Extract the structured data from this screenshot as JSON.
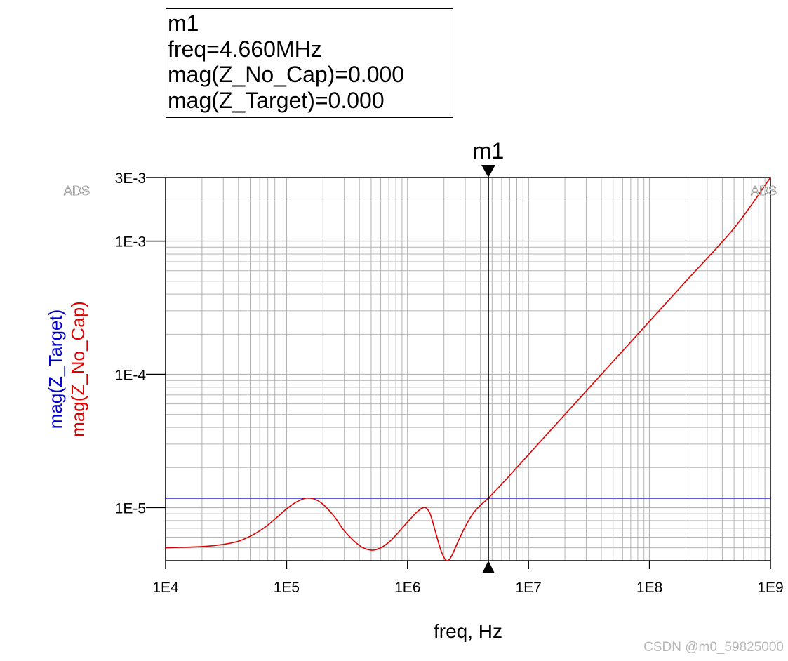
{
  "marker": {
    "name": "m1",
    "freq_line": "freq=4.660MHz",
    "line_no_cap": "mag(Z_No_Cap)=0.000",
    "line_target": "mag(Z_Target)=0.000"
  },
  "watermark_left": "ADS",
  "watermark_right": "ADS",
  "credit": "CSDN @m0_59825000",
  "colors": {
    "target": "#0000cc",
    "no_cap": "#e00000",
    "grid": "#b4b4b4"
  },
  "chart_data": {
    "type": "line",
    "xscale": "log",
    "yscale": "log",
    "xlabel": "freq, Hz",
    "ylabel_series": [
      "mag(Z_Target)",
      "mag(Z_No_Cap)"
    ],
    "xlim": [
      10000,
      1000000000
    ],
    "ylim": [
      4e-06,
      0.003
    ],
    "grid": true,
    "x_ticks": [
      {
        "value": 10000,
        "label": "1E4"
      },
      {
        "value": 100000,
        "label": "1E5"
      },
      {
        "value": 1000000,
        "label": "1E6"
      },
      {
        "value": 10000000,
        "label": "1E7"
      },
      {
        "value": 100000000,
        "label": "1E8"
      },
      {
        "value": 1000000000,
        "label": "1E9"
      }
    ],
    "y_ticks": [
      {
        "value": 1e-05,
        "label": "1E-5"
      },
      {
        "value": 0.0001,
        "label": "1E-4"
      },
      {
        "value": 0.001,
        "label": "1E-3"
      },
      {
        "value": 0.003,
        "label": "3E-3"
      }
    ],
    "marker_x": 4660000,
    "series": [
      {
        "name": "mag(Z_Target)",
        "color": "#0000cc",
        "x": [
          10000,
          1000000000
        ],
        "y": [
          1.18e-05,
          1.18e-05
        ]
      },
      {
        "name": "mag(Z_No_Cap)",
        "color": "#e00000",
        "x": [
          10000,
          20000,
          30000,
          40000,
          50000,
          60000,
          70000,
          80000,
          90000,
          100000,
          120000,
          140000,
          150000,
          170000,
          200000,
          250000,
          300000,
          400000,
          500000,
          600000,
          700000,
          800000,
          1000000,
          1200000,
          1350000,
          1450000,
          1550000,
          1700000,
          1900000,
          2100000,
          2300000,
          2600000,
          3000000,
          3500000,
          4000000,
          4660000,
          6000000,
          8000000,
          10000000,
          20000000,
          50000000,
          100000000,
          200000000,
          500000000,
          1000000000
        ],
        "y": [
          5e-06,
          5.1e-06,
          5.3e-06,
          5.6e-06,
          6.1e-06,
          6.7e-06,
          7.4e-06,
          8.2e-06,
          9e-06,
          9.8e-06,
          1.1e-05,
          1.17e-05,
          1.18e-05,
          1.16e-05,
          1.06e-05,
          8.5e-06,
          6.7e-06,
          5.2e-06,
          4.8e-06,
          5e-06,
          5.5e-06,
          6.2e-06,
          7.8e-06,
          9.3e-06,
          1e-05,
          9.8e-06,
          8.8e-06,
          6.6e-06,
          4.7e-06,
          4e-06,
          4.3e-06,
          5.5e-06,
          7.2e-06,
          9.1e-06,
          1.04e-05,
          1.18e-05,
          1.5e-05,
          2e-05,
          2.5e-05,
          5e-05,
          0.000125,
          0.00025,
          0.0005,
          0.00125,
          0.003
        ]
      }
    ]
  }
}
